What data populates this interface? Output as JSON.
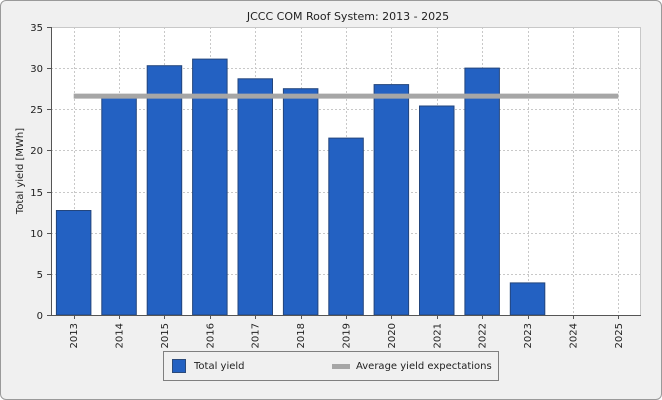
{
  "chart_data": {
    "type": "bar",
    "title": "JCCC COM Roof System: 2013 - 2025",
    "xlabel": "",
    "ylabel": "Total yield [MWh]",
    "ylim": [
      0,
      35
    ],
    "yticks": [
      0,
      5,
      10,
      15,
      20,
      25,
      30,
      35
    ],
    "categories": [
      "2013",
      "2014",
      "2015",
      "2016",
      "2017",
      "2018",
      "2019",
      "2020",
      "2021",
      "2022",
      "2023",
      "2024",
      "2025"
    ],
    "series": [
      {
        "name": "Total yield",
        "kind": "bar",
        "color": "#2361c2",
        "values": [
          12.7,
          26.5,
          30.3,
          31.1,
          28.7,
          27.5,
          21.5,
          28.0,
          25.4,
          30.0,
          3.9,
          null,
          null
        ]
      },
      {
        "name": "Average yield expectations",
        "kind": "line",
        "color": "#a6a6a6",
        "value": 26.6
      }
    ],
    "grid": true,
    "legend": "bottom-center"
  }
}
